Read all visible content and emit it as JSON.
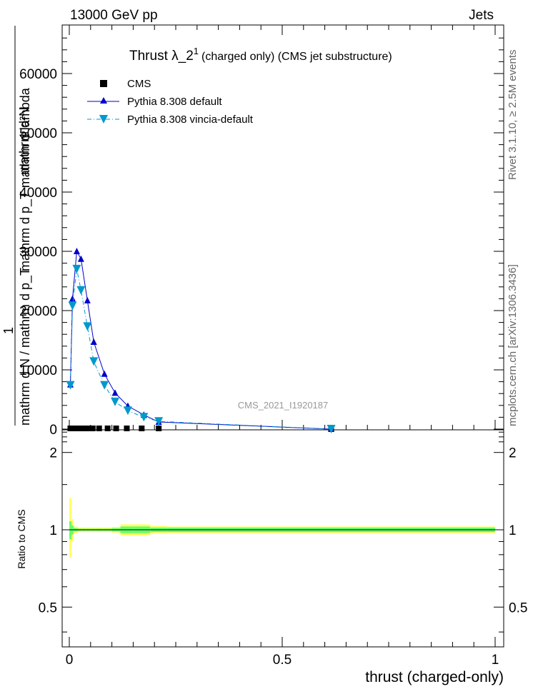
{
  "header": {
    "left": "13000 GeV pp",
    "right": "Jets"
  },
  "side": {
    "rivet": "Rivet 3.1.10, ≥ 2.5M events",
    "mcplots": "mcplots.cern.ch [arXiv:1306.3436]"
  },
  "watermark": "CMS_2021_I1920187",
  "title": {
    "main": "Thrust λ_2",
    "sup": "1",
    "suffix": "(charged only) (CMS jet substructure)"
  },
  "ylabel": {
    "numerator": "mathrm d²N",
    "denominator": "mathrm d p_T mathrm d lambda",
    "prefix_num": "1",
    "prefix_den": "mathrm d N / mathrm d p_T"
  },
  "ratio": {
    "ylabel": "Ratio to CMS",
    "yticks": [
      "0.5",
      "1",
      "2"
    ]
  },
  "chart_data": {
    "type": "line",
    "xlabel": "thrust (charged-only)",
    "xlim": [
      0,
      1
    ],
    "ylim": [
      0,
      68000
    ],
    "xticks": [
      "0",
      "0.5",
      "1"
    ],
    "yticks": [
      "0",
      "10000",
      "20000",
      "30000",
      "40000",
      "50000",
      "60000"
    ],
    "legend_position": "top-left",
    "series": [
      {
        "name": "CMS",
        "style": "markers",
        "color": "#000000",
        "x": [
          0.0025,
          0.0075,
          0.0125,
          0.0175,
          0.0225,
          0.0275,
          0.035,
          0.045,
          0.055,
          0.07,
          0.09,
          0.11,
          0.135,
          0.17,
          0.21,
          0.615
        ],
        "y": [
          0,
          0,
          0,
          0,
          0,
          0,
          0,
          0,
          0,
          0,
          0,
          0,
          0,
          0,
          0,
          0
        ]
      },
      {
        "name": "Pythia 8.308 default",
        "style": "solid-triangle-up",
        "color": "#0000cc",
        "x": [
          0.0025,
          0.0075,
          0.0175,
          0.0275,
          0.0425,
          0.0575,
          0.0825,
          0.1075,
          0.1375,
          0.175,
          0.21,
          0.615
        ],
        "y": [
          7500,
          22000,
          30000,
          28700,
          21700,
          14700,
          9300,
          6100,
          3900,
          2400,
          1200,
          0
        ]
      },
      {
        "name": "Pythia 8.308 vincia-default",
        "style": "dashdot-triangle-down",
        "color": "#0099cc",
        "x": [
          0.0025,
          0.0075,
          0.0175,
          0.0275,
          0.0425,
          0.0575,
          0.0825,
          0.1075,
          0.1375,
          0.175,
          0.21,
          0.615
        ],
        "y": [
          7400,
          20800,
          27000,
          23400,
          17300,
          11400,
          7400,
          4600,
          3100,
          2000,
          1300,
          0
        ]
      }
    ],
    "ratio": {
      "ylim": [
        0.35,
        2.45
      ],
      "reference": 1.0,
      "band_inner_color": "#66ff66",
      "band_outer_color": "#ffff66",
      "band_x": [
        0,
        0.005,
        0.01,
        0.02,
        0.03,
        0.04,
        0.05,
        0.06,
        0.08,
        0.1,
        0.12,
        0.15,
        0.19,
        0.23,
        1.0
      ],
      "inner": [
        [
          0.92,
          1.08
        ],
        [
          0.96,
          1.04
        ],
        [
          0.985,
          1.015
        ],
        [
          0.99,
          1.01
        ],
        [
          0.99,
          1.01
        ],
        [
          0.99,
          1.01
        ],
        [
          0.99,
          1.01
        ],
        [
          0.99,
          1.01
        ],
        [
          0.99,
          1.01
        ],
        [
          0.985,
          1.015
        ],
        [
          0.97,
          1.03
        ],
        [
          0.97,
          1.03
        ],
        [
          0.98,
          1.02
        ],
        [
          0.98,
          1.02
        ]
      ],
      "outer": [
        [
          0.78,
          1.33
        ],
        [
          0.9,
          1.1
        ],
        [
          0.97,
          1.03
        ],
        [
          0.98,
          1.02
        ],
        [
          0.98,
          1.02
        ],
        [
          0.98,
          1.02
        ],
        [
          0.98,
          1.02
        ],
        [
          0.98,
          1.02
        ],
        [
          0.98,
          1.02
        ],
        [
          0.975,
          1.025
        ],
        [
          0.95,
          1.05
        ],
        [
          0.95,
          1.05
        ],
        [
          0.965,
          1.035
        ],
        [
          0.97,
          1.03
        ]
      ]
    }
  }
}
